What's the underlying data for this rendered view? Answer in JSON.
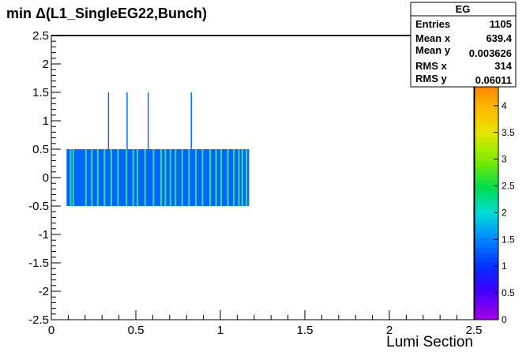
{
  "chart_data": {
    "type": "heatmap",
    "title": "min Δ(L1_SingleEG22,Bunch)",
    "xlabel": "Lumi Section",
    "ylabel": "",
    "xlim": [
      0,
      2.5
    ],
    "ylim": [
      -2.5,
      2.5
    ],
    "x_ticks": [
      "0",
      "0.5",
      "1",
      "1.5",
      "2",
      "2.5"
    ],
    "y_ticks": [
      "2.5",
      "2",
      "1.5",
      "1",
      "0.5",
      "0",
      "-0.5",
      "-1",
      "-1.5",
      "-2",
      "-2.5"
    ],
    "palette_ticks": [
      "0",
      "0.5",
      "1",
      "1.5",
      "2",
      "2.5",
      "3",
      "3.5",
      "4"
    ],
    "palette_range": [
      0,
      4.5
    ],
    "band": {
      "x_start": 0.09,
      "x_end": 1.17,
      "y_min": -0.5,
      "y_max": 0.5,
      "base_value": 1,
      "highlight_value": 2
    },
    "band_highlights": [
      0.11,
      0.125,
      0.2,
      0.235,
      0.27,
      0.31,
      0.35,
      0.39,
      0.44,
      0.48,
      0.505,
      0.55,
      0.6,
      0.645,
      0.67,
      0.7,
      0.73,
      0.77,
      0.81,
      0.85,
      0.89,
      0.935,
      0.97,
      1.0,
      1.04,
      1.075,
      1.105,
      1.125,
      1.15
    ],
    "spikes": [
      {
        "x": 0.335,
        "y": 1,
        "value": 1
      },
      {
        "x": 0.445,
        "y": 1,
        "value": 1
      },
      {
        "x": 0.57,
        "y": 1,
        "value": 1
      },
      {
        "x": 0.825,
        "y": 1,
        "value": 1
      }
    ],
    "grid": false,
    "legend": "top-right"
  },
  "stats": {
    "name": "EG",
    "rows": [
      {
        "label": "Entries",
        "value": "1105"
      },
      {
        "label": "Mean x",
        "value": "639.4"
      },
      {
        "label": "Mean y",
        "value": "0.003626"
      },
      {
        "label": "RMS x",
        "value": "314"
      },
      {
        "label": "RMS y",
        "value": "0.06011"
      }
    ]
  },
  "colors": {
    "base": "#0066ff",
    "highlight": "#33dd99",
    "frame": "#000000"
  }
}
